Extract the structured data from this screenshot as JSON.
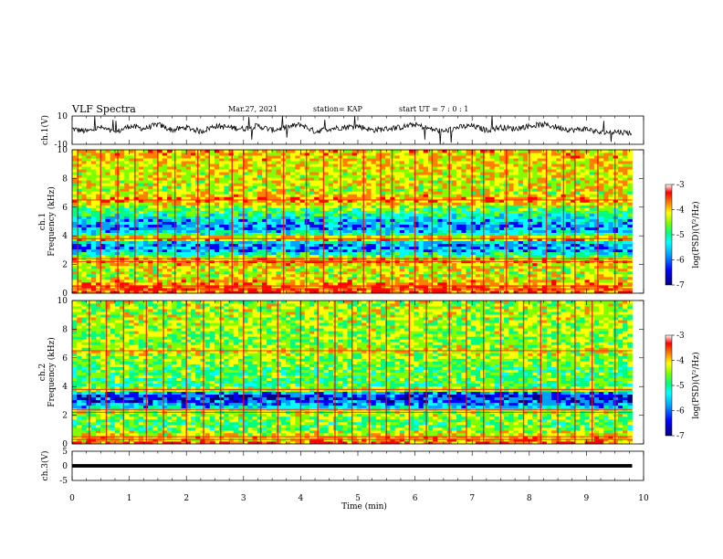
{
  "header": {
    "title": "VLF Spectra",
    "date": "Mar.27, 2021",
    "station": "station= KAP",
    "start": "start  UT =   7 : 0  : 1"
  },
  "colors": {
    "colormap": [
      "#000080",
      "#0000ff",
      "#00a0ff",
      "#00ffff",
      "#00ff80",
      "#80ff00",
      "#ffff00",
      "#ff8000",
      "#ff0000",
      "#ffffff"
    ]
  },
  "chart_data": [
    {
      "type": "line",
      "panel": "ch1-waveform",
      "ylabel": "ch.1(V)",
      "ylim": [
        -10,
        10
      ],
      "yticks": [
        "10",
        "-10"
      ],
      "xlim": [
        0,
        10
      ],
      "series": [
        {
          "x": [
            0,
            0.25,
            0.5,
            0.75,
            1.0,
            1.25,
            1.5,
            1.75,
            2.0,
            2.25,
            2.5,
            2.75,
            3.0,
            3.25,
            3.5,
            3.75,
            4.0,
            4.25,
            4.5,
            4.75,
            5.0,
            5.25,
            5.5,
            5.75,
            6.0,
            6.25,
            6.5,
            6.75,
            7.0,
            7.25,
            7.5,
            7.75,
            8.0,
            8.25,
            8.5,
            8.75,
            9.0,
            9.25,
            9.5,
            9.8
          ],
          "values": [
            1,
            -1,
            2,
            -2,
            3,
            1,
            4,
            0,
            2,
            -1,
            3,
            2,
            1,
            3,
            0,
            2,
            4,
            -1,
            1,
            2,
            3,
            0,
            1,
            2,
            4,
            1,
            -1,
            2,
            3,
            0,
            2,
            1,
            3,
            4,
            2,
            0,
            1,
            -2,
            -1,
            -2
          ]
        }
      ]
    },
    {
      "type": "heatmap",
      "panel": "ch1-spectrogram",
      "ylabel": "ch.1\nFrequency (kHz)",
      "xlim": [
        0,
        9.8
      ],
      "ylim": [
        0,
        10
      ],
      "yticks": [
        "0",
        "2",
        "4",
        "6",
        "8",
        "10"
      ],
      "zlim": [
        -7,
        -3
      ],
      "colorbar_ticks": [
        "-3",
        "-4",
        "-5",
        "-6",
        "-7"
      ],
      "colorbar_label": "log(PSD)(V²/Hz)",
      "freq_profile_khz": [
        [
          0.0,
          -3.4
        ],
        [
          0.5,
          -3.6
        ],
        [
          1.0,
          -4.2
        ],
        [
          1.5,
          -4.4
        ],
        [
          2.0,
          -4.1
        ],
        [
          2.3,
          -3.5
        ],
        [
          2.6,
          -4.8
        ],
        [
          3.0,
          -5.8
        ],
        [
          3.5,
          -6.0
        ],
        [
          3.8,
          -3.4
        ],
        [
          4.2,
          -5.4
        ],
        [
          4.7,
          -5.9
        ],
        [
          5.2,
          -5.5
        ],
        [
          5.6,
          -5.0
        ],
        [
          6.0,
          -4.6
        ],
        [
          6.5,
          -3.6
        ],
        [
          7.0,
          -4.3
        ],
        [
          8.0,
          -4.2
        ],
        [
          9.0,
          -4.1
        ],
        [
          10.0,
          -4.0
        ]
      ],
      "sferic_times_min": [
        0.1,
        0.5,
        0.8,
        1.1,
        1.5,
        1.8,
        2.2,
        2.4,
        2.8,
        3.0,
        3.4,
        3.7,
        4.1,
        4.4,
        4.7,
        5.1,
        5.4,
        5.6,
        6.0,
        6.3,
        6.6,
        7.0,
        7.2,
        7.6,
        8.0,
        8.3,
        8.6,
        8.8,
        9.2,
        9.5
      ]
    },
    {
      "type": "heatmap",
      "panel": "ch2-spectrogram",
      "ylabel": "ch.2\nFrequency (kHz)",
      "xlim": [
        0,
        9.8
      ],
      "ylim": [
        0,
        10
      ],
      "yticks": [
        "0",
        "2",
        "4",
        "6",
        "8",
        "10"
      ],
      "zlim": [
        -7,
        -3
      ],
      "colorbar_ticks": [
        "-3",
        "-4",
        "-5",
        "-6",
        "-7"
      ],
      "colorbar_label": "log(PSD)(V²/Hz)",
      "freq_profile_khz": [
        [
          0.0,
          -3.5
        ],
        [
          0.5,
          -4.0
        ],
        [
          1.0,
          -4.6
        ],
        [
          1.5,
          -4.8
        ],
        [
          2.0,
          -4.5
        ],
        [
          2.3,
          -4.3
        ],
        [
          2.6,
          -5.6
        ],
        [
          3.0,
          -6.2
        ],
        [
          3.5,
          -6.3
        ],
        [
          3.8,
          -4.2
        ],
        [
          4.2,
          -5.0
        ],
        [
          4.7,
          -4.7
        ],
        [
          5.2,
          -4.9
        ],
        [
          5.6,
          -4.6
        ],
        [
          6.0,
          -4.5
        ],
        [
          6.5,
          -4.2
        ],
        [
          7.0,
          -4.6
        ],
        [
          8.0,
          -4.5
        ],
        [
          9.0,
          -4.4
        ],
        [
          10.0,
          -4.4
        ]
      ],
      "sferic_times_min": [
        0.3,
        0.6,
        0.9,
        1.3,
        1.6,
        2.0,
        2.3,
        2.6,
        3.0,
        3.3,
        3.6,
        4.0,
        4.3,
        4.6,
        4.9,
        5.2,
        5.5,
        5.9,
        6.2,
        6.6,
        6.9,
        7.2,
        7.5,
        7.9,
        8.2,
        8.5,
        8.8,
        9.1,
        9.5
      ]
    },
    {
      "type": "line",
      "panel": "ch3-waveform",
      "ylabel": "ch.3(V)",
      "ylim": [
        -5,
        5
      ],
      "yticks": [
        "5",
        "0",
        "-5"
      ],
      "xlim": [
        0,
        10
      ],
      "series": [
        {
          "x": [
            0,
            9.8
          ],
          "values": [
            0,
            0
          ],
          "band": [
            -0.6,
            0.6
          ]
        }
      ]
    }
  ],
  "x_axis": {
    "label": "Time (min)",
    "ticks": [
      "0",
      "1",
      "2",
      "3",
      "4",
      "5",
      "6",
      "7",
      "8",
      "9",
      "10"
    ]
  }
}
